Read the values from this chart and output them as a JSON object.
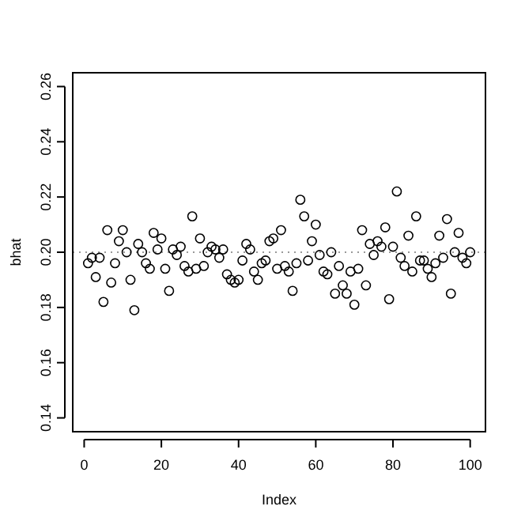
{
  "chart_data": {
    "type": "scatter",
    "xlabel": "Index",
    "ylabel": "bhat",
    "marker": "circle",
    "xlim": [
      -2.96,
      103.96
    ],
    "xticks": [
      0,
      20,
      40,
      60,
      80,
      100
    ],
    "ylim": [
      0.135,
      0.265
    ],
    "yticks": [
      {
        "value": 0.14,
        "label": "0.14"
      },
      {
        "value": 0.16,
        "label": "0.16"
      },
      {
        "value": 0.18,
        "label": "0.18"
      },
      {
        "value": 0.2,
        "label": "0.20"
      },
      {
        "value": 0.22,
        "label": "0.22"
      },
      {
        "value": 0.24,
        "label": "0.24"
      },
      {
        "value": 0.26,
        "label": "0.26"
      }
    ],
    "ref_lines": [
      {
        "axis": "y",
        "value": 0.2,
        "line_style": "dotted",
        "color": "#999999"
      }
    ],
    "series": [
      {
        "color": "#000000",
        "x": [
          1,
          2,
          3,
          4,
          5,
          6,
          7,
          8,
          9,
          10,
          11,
          12,
          13,
          14,
          15,
          16,
          17,
          18,
          19,
          20,
          21,
          22,
          23,
          24,
          25,
          26,
          27,
          28,
          29,
          30,
          31,
          32,
          33,
          34,
          35,
          36,
          37,
          38,
          39,
          40,
          41,
          42,
          43,
          44,
          45,
          46,
          47,
          48,
          49,
          50,
          51,
          52,
          53,
          54,
          55,
          56,
          57,
          58,
          59,
          60,
          61,
          62,
          63,
          64,
          65,
          66,
          67,
          68,
          69,
          70,
          71,
          72,
          73,
          74,
          75,
          76,
          77,
          78,
          79,
          80,
          81,
          82,
          83,
          84,
          85,
          86,
          87,
          88,
          89,
          90,
          91,
          92,
          93,
          94,
          95,
          96,
          97,
          98,
          99,
          100
        ],
        "values": [
          0.196,
          0.198,
          0.191,
          0.198,
          0.182,
          0.208,
          0.189,
          0.196,
          0.204,
          0.208,
          0.2,
          0.19,
          0.179,
          0.203,
          0.2,
          0.196,
          0.194,
          0.207,
          0.201,
          0.205,
          0.194,
          0.186,
          0.201,
          0.199,
          0.202,
          0.195,
          0.193,
          0.213,
          0.194,
          0.205,
          0.195,
          0.2,
          0.202,
          0.201,
          0.198,
          0.201,
          0.192,
          0.19,
          0.189,
          0.19,
          0.197,
          0.203,
          0.201,
          0.193,
          0.19,
          0.196,
          0.197,
          0.204,
          0.205,
          0.194,
          0.208,
          0.195,
          0.193,
          0.186,
          0.196,
          0.219,
          0.213,
          0.197,
          0.204,
          0.21,
          0.199,
          0.193,
          0.192,
          0.2,
          0.185,
          0.195,
          0.188,
          0.185,
          0.193,
          0.181,
          0.194,
          0.208,
          0.188,
          0.203,
          0.199,
          0.204,
          0.202,
          0.209,
          0.183,
          0.202,
          0.222,
          0.198,
          0.195,
          0.206,
          0.193,
          0.213,
          0.197,
          0.197,
          0.194,
          0.191,
          0.196,
          0.206,
          0.198,
          0.212,
          0.185,
          0.2,
          0.207,
          0.198,
          0.196,
          0.2
        ]
      }
    ]
  }
}
